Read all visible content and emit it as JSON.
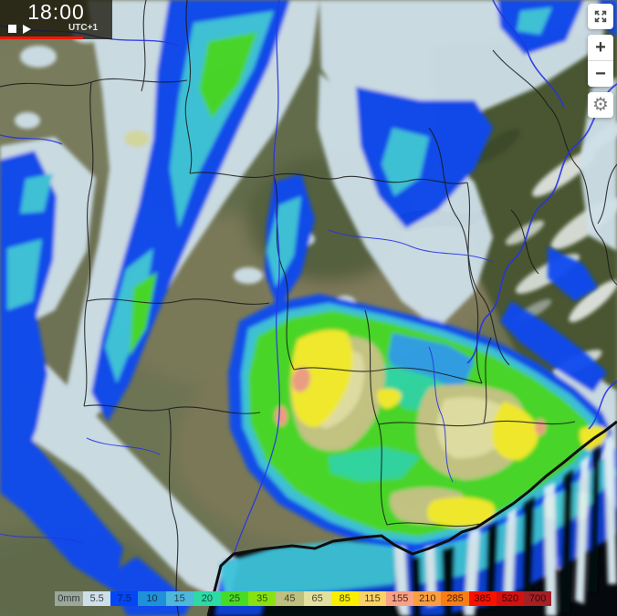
{
  "time_control": {
    "time": "18:00",
    "timezone": "UTC+1",
    "icons": {
      "stop": "stop-square",
      "play": "play-triangle"
    }
  },
  "timeline": {
    "progress_percent": 74,
    "bar_color": "#f21505"
  },
  "map_controls": {
    "fullscreen_icon": "expand-arrows",
    "zoom_in": "+",
    "zoom_out": "−",
    "settings_icon": "gear",
    "settings_glyph": "⚙"
  },
  "legend": {
    "unit_label": "0mm",
    "cells": [
      {
        "label": "5.5",
        "color": "#cfdfe8",
        "text": "#38424a"
      },
      {
        "label": "7.5",
        "color": "#0345f7",
        "text": "#15233a"
      },
      {
        "label": "10",
        "color": "#1f90d9",
        "text": "#1c2f3a"
      },
      {
        "label": "15",
        "color": "#4db7dc",
        "text": "#27414a"
      },
      {
        "label": "20",
        "color": "#2dd9a5",
        "text": "#1e4238"
      },
      {
        "label": "25",
        "color": "#46dc26",
        "text": "#2a4214"
      },
      {
        "label": "35",
        "color": "#86e310",
        "text": "#3a4a10"
      },
      {
        "label": "45",
        "color": "#bfc080",
        "text": "#45422a"
      },
      {
        "label": "65",
        "color": "#e2e09e",
        "text": "#4a4630"
      },
      {
        "label": "85",
        "color": "#f8ef00",
        "text": "#4a4410"
      },
      {
        "label": "115",
        "color": "#f9d365",
        "text": "#4c3a1a"
      },
      {
        "label": "155",
        "color": "#f8a185",
        "text": "#4a2420"
      },
      {
        "label": "210",
        "color": "#f99e41",
        "text": "#49290e"
      },
      {
        "label": "285",
        "color": "#f87d15",
        "text": "#43200a"
      },
      {
        "label": "385",
        "color": "#f91100",
        "text": "#3c0a06"
      },
      {
        "label": "520",
        "color": "#d31111",
        "text": "#330808"
      },
      {
        "label": "700",
        "color": "#a32025",
        "text": "#2e0a0a"
      }
    ]
  }
}
